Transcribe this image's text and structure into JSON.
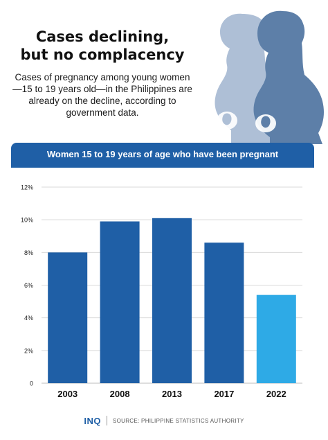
{
  "header": {
    "title_line1": "Cases declining,",
    "title_line2": "but no complacency",
    "subtitle": "Cases of pregnancy among young women—15 to 19 years old—in the Philippines are already on the decline, according to government data."
  },
  "banner": {
    "label": "Women 15 to 19 years of age who have been pregnant"
  },
  "chart_data": {
    "type": "bar",
    "title": "Women 15 to 19 years of age who have been pregnant",
    "categories": [
      "2003",
      "2008",
      "2013",
      "2017",
      "2022"
    ],
    "values": [
      8.0,
      9.9,
      10.1,
      8.6,
      5.4
    ],
    "ylim": [
      0,
      12
    ],
    "yticks": [
      0,
      2,
      4,
      6,
      8,
      10,
      12
    ],
    "ytick_labels": [
      "0",
      "2%",
      "4%",
      "6%",
      "8%",
      "10%",
      "12%"
    ],
    "xlabel": "",
    "ylabel": "",
    "grid": true,
    "colors": [
      "#1f5fa6",
      "#1f5fa6",
      "#1f5fa6",
      "#1f5fa6",
      "#2eaae6"
    ]
  },
  "footer": {
    "logo": "INQ",
    "source": "SOURCE: PHILIPPINE STATISTICS AUTHORITY"
  },
  "colors": {
    "accent": "#1f5fa6",
    "highlight": "#2eaae6",
    "silhouette_front": "#5d7fa8",
    "silhouette_back": "#aebfd6"
  },
  "icons": [
    "pregnant-woman-silhouette-icon",
    "fetus-icon"
  ]
}
